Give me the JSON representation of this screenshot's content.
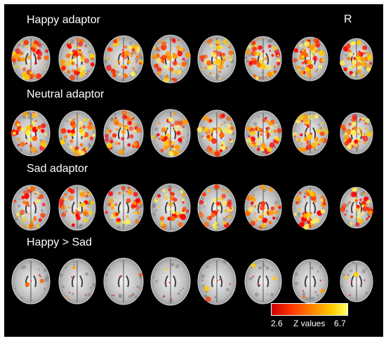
{
  "panels": [
    {
      "title": "Happy adaptor",
      "activation": 0.85
    },
    {
      "title": "Neutral adaptor",
      "activation": 0.75
    },
    {
      "title": "Sad adaptor",
      "activation": 0.65
    },
    {
      "title": "Happy > Sad",
      "activation": 0.03
    }
  ],
  "orientation_label": "R",
  "legend": {
    "min_label": "2.6",
    "title": "Z values",
    "max_label": "6.7"
  },
  "colors": {
    "background": "#000000",
    "cmap_low": "#cc0000",
    "cmap_mid": "#ff8800",
    "cmap_high": "#ffff66"
  }
}
